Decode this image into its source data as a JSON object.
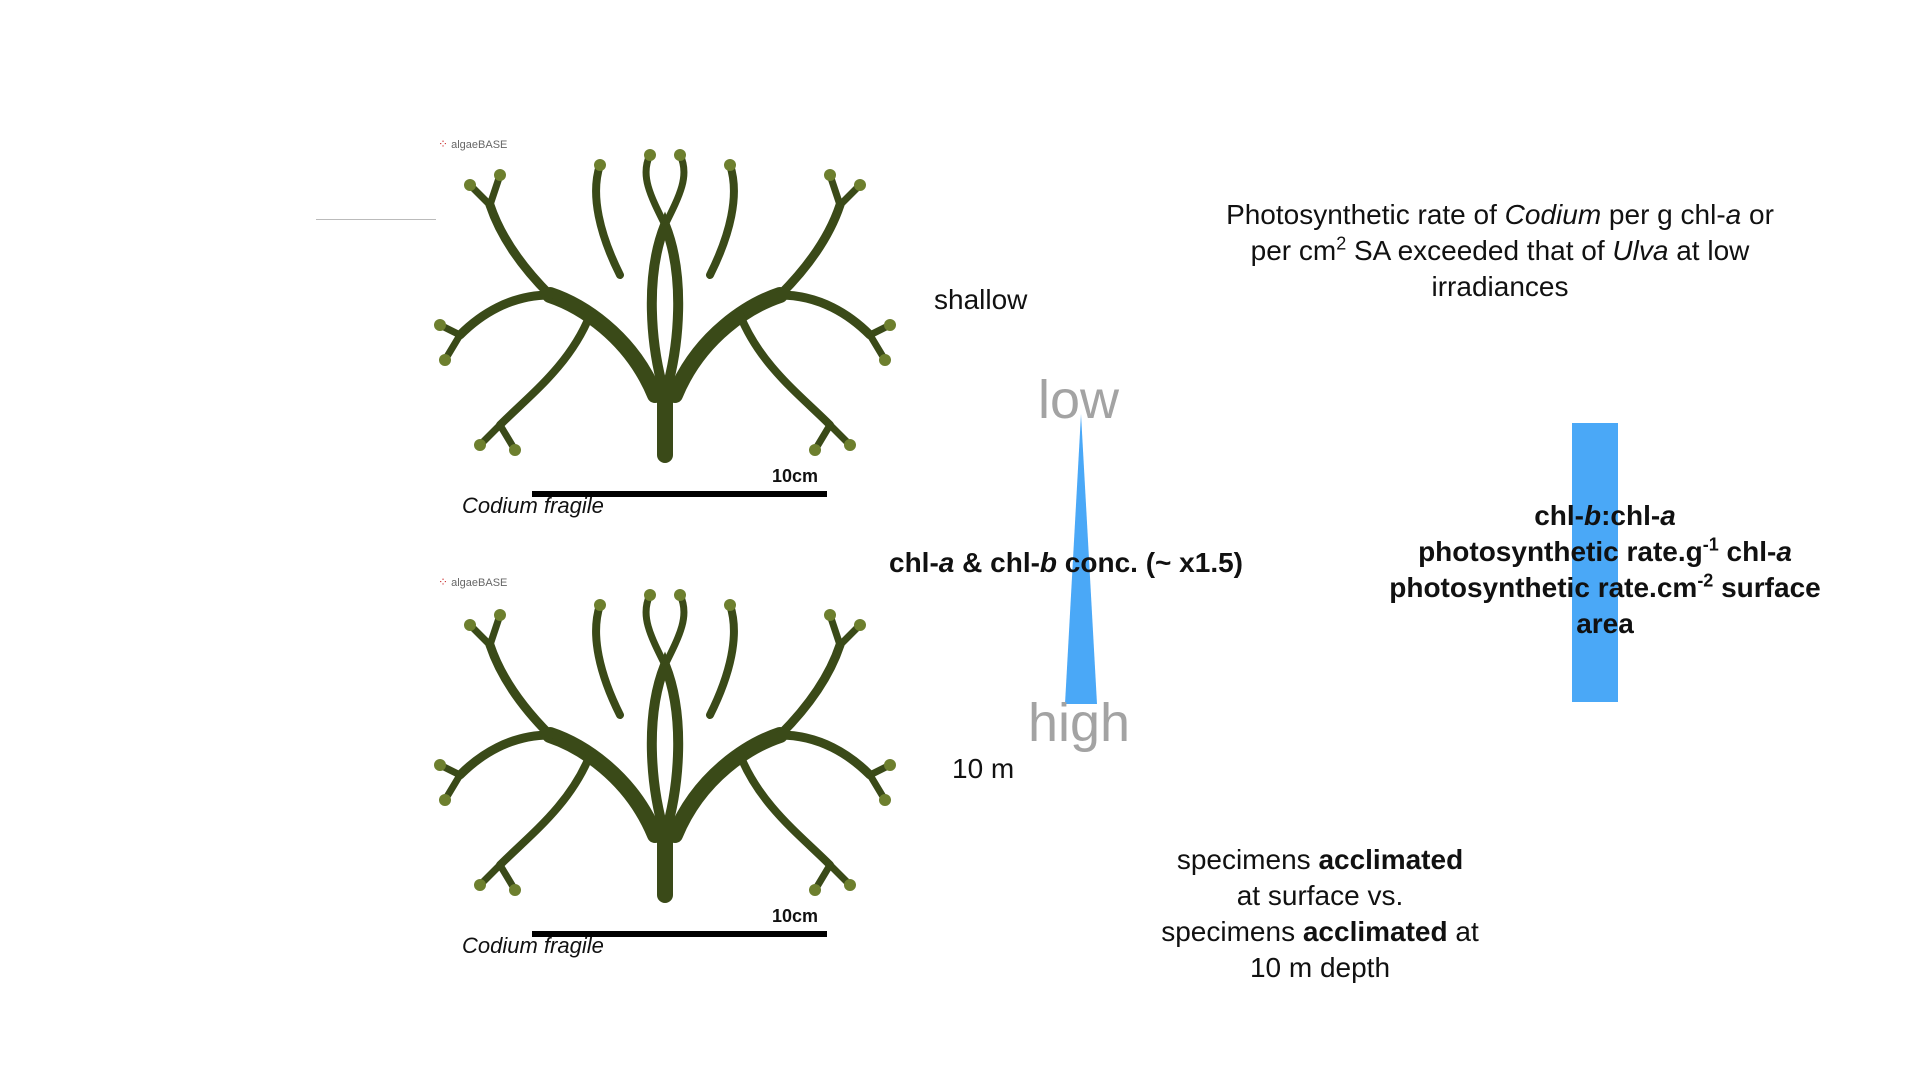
{
  "colors": {
    "accent_blue": "#4aa8f7",
    "label_gray": "#a3a3a3",
    "alga_dark": "#3a4a18",
    "alga_light": "#6d7f2e"
  },
  "specimens": [
    {
      "logo": "algaeBASE",
      "scale_label": "10cm",
      "caption": "Codium fragile"
    },
    {
      "logo": "algaeBASE",
      "scale_label": "10cm",
      "caption": "Codium fragile"
    }
  ],
  "depth": {
    "top": "shallow",
    "bottom": "10 m"
  },
  "gradient": {
    "low_label": "low",
    "high_label": "high",
    "measure": {
      "p1": "chl-",
      "p2": "a",
      "p3": " & chl-",
      "p4": "b",
      "p5": " conc. (~ x1.5)"
    }
  },
  "finding": {
    "p1": "Photosynthetic rate of ",
    "p2": "Codium",
    "p3": " per g chl-",
    "p4": "a",
    "p5": " or",
    "p6": "per cm",
    "p7": "2",
    "p8": " SA exceeded that of ",
    "p9": "Ulva",
    "p10": " at low",
    "p11": "irradiances"
  },
  "ratios": {
    "line1": {
      "a": "chl-",
      "b": "b",
      "c": ":chl-",
      "d": "a"
    },
    "line2": {
      "a": "photosynthetic rate.g",
      "b": "-1",
      "c": " chl-",
      "d": "a"
    },
    "line3": {
      "a": "photosynthetic rate.cm",
      "b": "-2",
      "c": " surface"
    },
    "line4": "area"
  },
  "comparison": {
    "p1": "specimens ",
    "p2": "acclimated",
    "p3": "at surface vs.",
    "p4": "specimens ",
    "p5": "acclimated",
    "p6": " at",
    "p7": "10 m depth"
  }
}
